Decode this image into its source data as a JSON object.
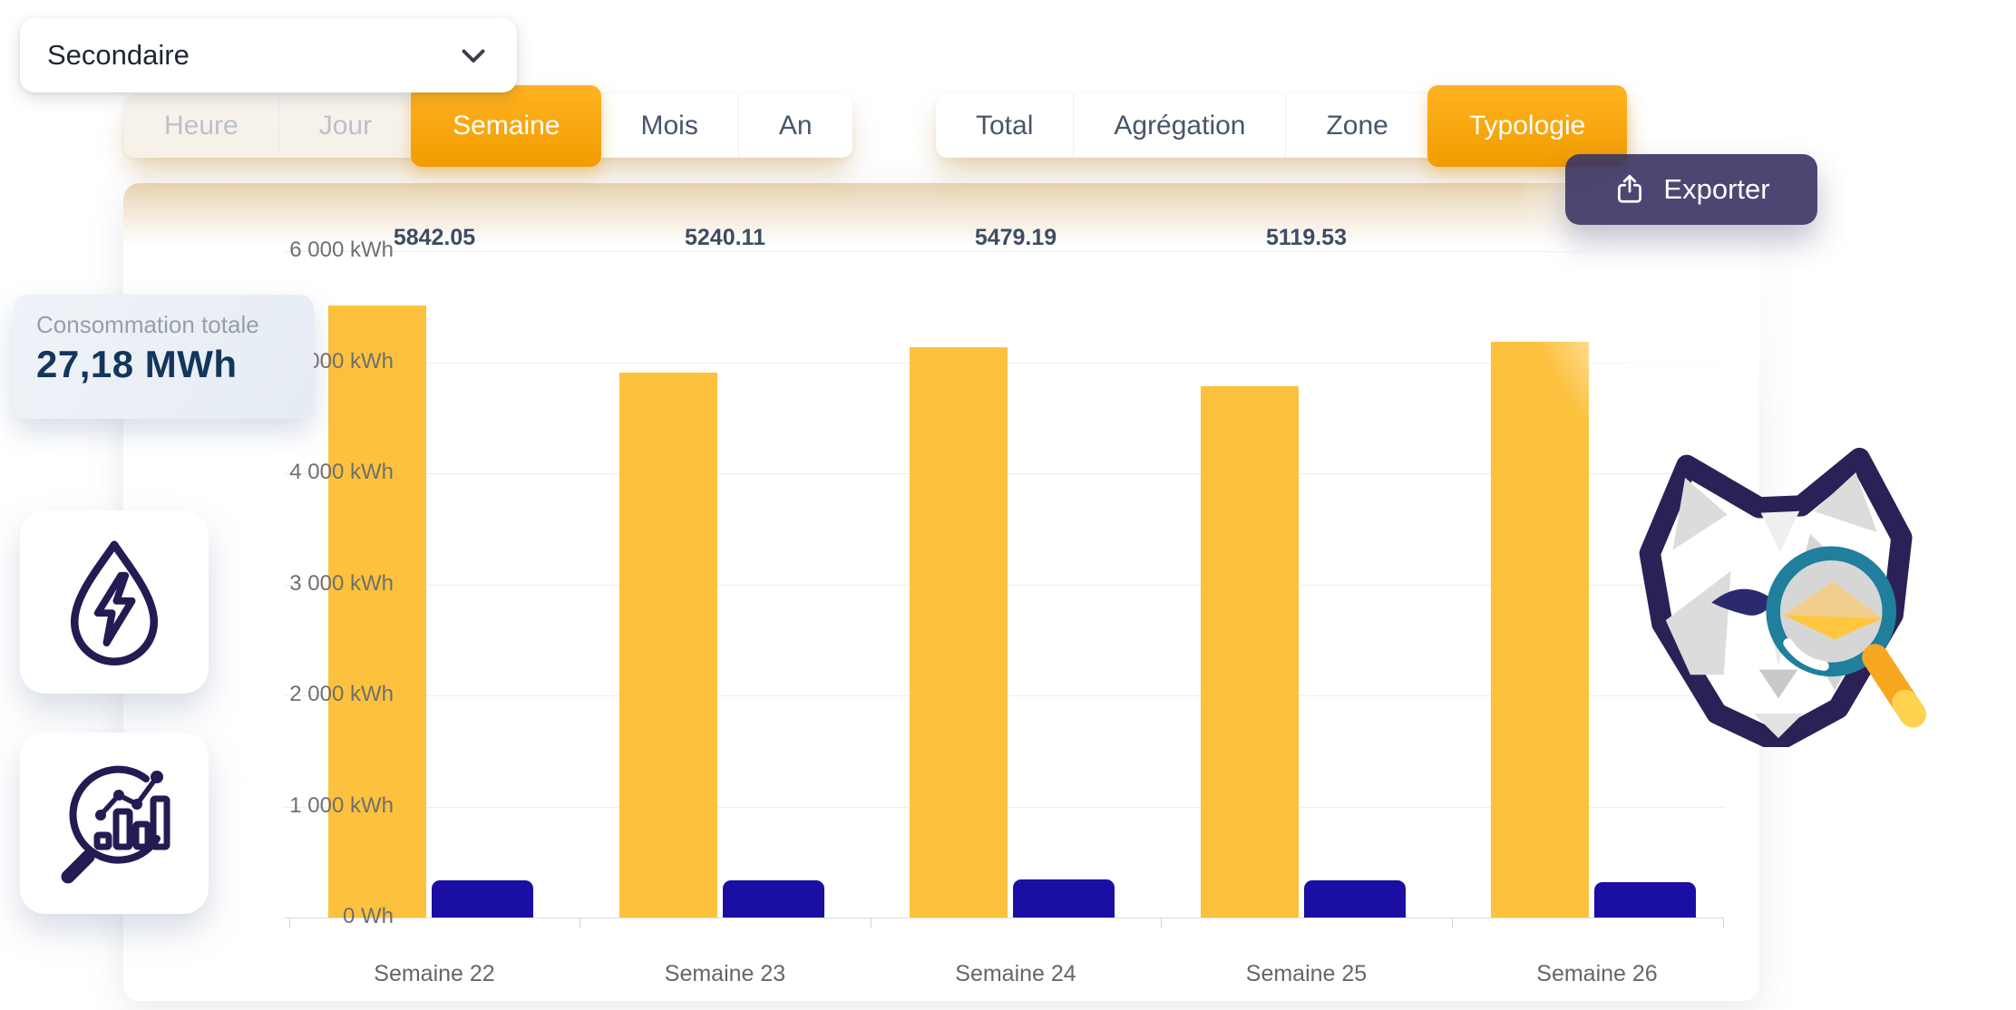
{
  "dropdown": {
    "value": "Secondaire"
  },
  "period_tabs": {
    "items": [
      {
        "label": "Heure",
        "state": "disabled"
      },
      {
        "label": "Jour",
        "state": "disabled"
      },
      {
        "label": "Semaine",
        "state": "active"
      },
      {
        "label": "Mois",
        "state": ""
      },
      {
        "label": "An",
        "state": ""
      }
    ]
  },
  "group_tabs": {
    "items": [
      {
        "label": "Total",
        "state": ""
      },
      {
        "label": "Agrégation",
        "state": ""
      },
      {
        "label": "Zone",
        "state": ""
      },
      {
        "label": "Typologie",
        "state": "active"
      }
    ]
  },
  "export_button": {
    "label": "Exporter",
    "icon": "share-upload-icon"
  },
  "summary_card": {
    "title": "Consommation totale",
    "value": "27,18 MWh"
  },
  "side_icons": [
    {
      "name": "energy-drop-icon"
    },
    {
      "name": "analytics-magnifier-icon"
    }
  ],
  "mascot": {
    "name": "panda-magnifier-logo"
  },
  "chart_data": {
    "type": "bar",
    "categories": [
      "Semaine 22",
      "Semaine 23",
      "Semaine 24",
      "Semaine 25",
      "Semaine 26"
    ],
    "series": [
      {
        "name": "barres-jaunes",
        "color": "#FCC13D",
        "values": [
          5510,
          4906,
          5135,
          4785,
          5180
        ]
      },
      {
        "name": "barres-bleues",
        "color": "#1B0FA3",
        "values": [
          332,
          334,
          344,
          335,
          319
        ]
      }
    ],
    "total_labels": [
      "5842.05",
      "5240.11",
      "5479.19",
      "5119.53",
      ""
    ],
    "ylabel_ticks": [
      "6 000 kWh",
      "5 000 kWh",
      "4 000 kWh",
      "3 000 kWh",
      "2 000 kWh",
      "1 000 kWh",
      "0 Wh"
    ],
    "ylim": [
      0,
      6000
    ],
    "xlabel": "",
    "ylabel": "",
    "grid": true,
    "legend": "none"
  },
  "colors": {
    "accent_orange": "#F9A51A",
    "bar_yellow": "#FCC13D",
    "bar_blue": "#1B0FA3",
    "icon_navy": "#221c52",
    "export_bg": "#383363",
    "magnifier_teal": "#1F7F9C",
    "handle_orange": "#F6A71F",
    "summary_value_navy": "#14365C"
  }
}
